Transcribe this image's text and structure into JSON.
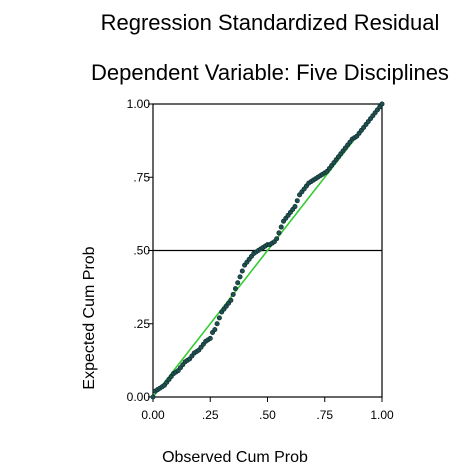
{
  "chart_data": {
    "type": "scatter",
    "title": "Regression Standardized Residual",
    "subtitle": "Dependent Variable: Five Disciplines",
    "xlabel": "Observed Cum Prob",
    "ylabel": "Expected Cum Prob",
    "xlim": [
      0,
      1
    ],
    "ylim": [
      0,
      1
    ],
    "xticks": [
      "0.00",
      ".25",
      ".50",
      ".75",
      "1.00"
    ],
    "yticks": [
      "0.00",
      ".25",
      ".50",
      ".75",
      "1.00"
    ],
    "reference_line": {
      "from": [
        0,
        0
      ],
      "to": [
        1,
        1
      ],
      "color": "#33cc33"
    },
    "horizontal_line_y": 0.5,
    "point_color": "#1f4f4f",
    "points": [
      [
        0.0,
        0.0
      ],
      [
        0.01,
        0.02
      ],
      [
        0.02,
        0.025
      ],
      [
        0.03,
        0.03
      ],
      [
        0.04,
        0.035
      ],
      [
        0.05,
        0.04
      ],
      [
        0.06,
        0.05
      ],
      [
        0.07,
        0.06
      ],
      [
        0.08,
        0.07
      ],
      [
        0.09,
        0.08
      ],
      [
        0.1,
        0.085
      ],
      [
        0.11,
        0.09
      ],
      [
        0.12,
        0.1
      ],
      [
        0.13,
        0.11
      ],
      [
        0.14,
        0.12
      ],
      [
        0.15,
        0.125
      ],
      [
        0.16,
        0.13
      ],
      [
        0.17,
        0.14
      ],
      [
        0.18,
        0.15
      ],
      [
        0.19,
        0.155
      ],
      [
        0.2,
        0.16
      ],
      [
        0.21,
        0.17
      ],
      [
        0.22,
        0.18
      ],
      [
        0.23,
        0.19
      ],
      [
        0.24,
        0.195
      ],
      [
        0.25,
        0.2
      ],
      [
        0.26,
        0.22
      ],
      [
        0.27,
        0.23
      ],
      [
        0.28,
        0.25
      ],
      [
        0.29,
        0.27
      ],
      [
        0.3,
        0.29
      ],
      [
        0.31,
        0.3
      ],
      [
        0.32,
        0.31
      ],
      [
        0.33,
        0.32
      ],
      [
        0.34,
        0.33
      ],
      [
        0.35,
        0.35
      ],
      [
        0.36,
        0.37
      ],
      [
        0.37,
        0.39
      ],
      [
        0.38,
        0.41
      ],
      [
        0.39,
        0.43
      ],
      [
        0.4,
        0.45
      ],
      [
        0.41,
        0.46
      ],
      [
        0.42,
        0.47
      ],
      [
        0.43,
        0.48
      ],
      [
        0.44,
        0.49
      ],
      [
        0.45,
        0.495
      ],
      [
        0.46,
        0.5
      ],
      [
        0.47,
        0.505
      ],
      [
        0.48,
        0.51
      ],
      [
        0.49,
        0.515
      ],
      [
        0.5,
        0.52
      ],
      [
        0.51,
        0.52
      ],
      [
        0.52,
        0.525
      ],
      [
        0.53,
        0.53
      ],
      [
        0.54,
        0.54
      ],
      [
        0.55,
        0.56
      ],
      [
        0.56,
        0.58
      ],
      [
        0.57,
        0.6
      ],
      [
        0.58,
        0.61
      ],
      [
        0.59,
        0.62
      ],
      [
        0.6,
        0.63
      ],
      [
        0.61,
        0.64
      ],
      [
        0.62,
        0.65
      ],
      [
        0.63,
        0.67
      ],
      [
        0.64,
        0.69
      ],
      [
        0.65,
        0.7
      ],
      [
        0.66,
        0.71
      ],
      [
        0.67,
        0.72
      ],
      [
        0.68,
        0.73
      ],
      [
        0.69,
        0.735
      ],
      [
        0.7,
        0.74
      ],
      [
        0.71,
        0.745
      ],
      [
        0.72,
        0.75
      ],
      [
        0.73,
        0.755
      ],
      [
        0.74,
        0.76
      ],
      [
        0.75,
        0.765
      ],
      [
        0.76,
        0.77
      ],
      [
        0.77,
        0.78
      ],
      [
        0.78,
        0.79
      ],
      [
        0.79,
        0.8
      ],
      [
        0.8,
        0.81
      ],
      [
        0.81,
        0.82
      ],
      [
        0.82,
        0.83
      ],
      [
        0.83,
        0.84
      ],
      [
        0.84,
        0.85
      ],
      [
        0.85,
        0.86
      ],
      [
        0.86,
        0.87
      ],
      [
        0.87,
        0.88
      ],
      [
        0.88,
        0.885
      ],
      [
        0.89,
        0.89
      ],
      [
        0.9,
        0.9
      ],
      [
        0.91,
        0.91
      ],
      [
        0.92,
        0.92
      ],
      [
        0.93,
        0.93
      ],
      [
        0.94,
        0.94
      ],
      [
        0.95,
        0.95
      ],
      [
        0.96,
        0.96
      ],
      [
        0.97,
        0.97
      ],
      [
        0.98,
        0.98
      ],
      [
        0.99,
        0.99
      ],
      [
        1.0,
        1.0
      ]
    ]
  }
}
